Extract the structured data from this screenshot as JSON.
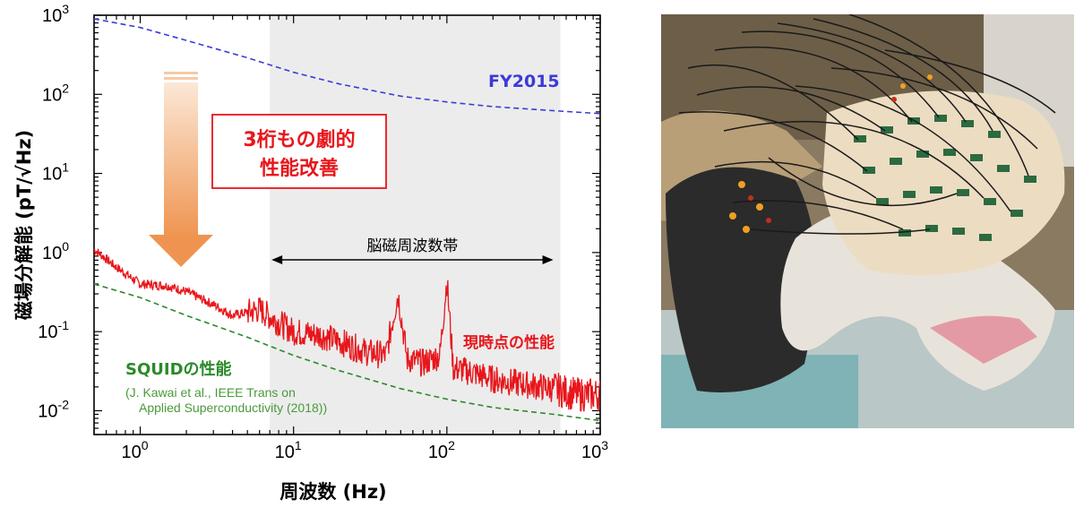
{
  "chart_data": {
    "type": "line",
    "xscale": "log",
    "yscale": "log",
    "xlim": [
      0.5,
      1000
    ],
    "ylim": [
      0.005,
      1000
    ],
    "xlabel": "周波数 (Hz)",
    "ylabel": "磁場分解能 (pT/√Hz)",
    "x_ticks": [
      {
        "base": "10",
        "exp": "0",
        "value": 1
      },
      {
        "base": "10",
        "exp": "1",
        "value": 10
      },
      {
        "base": "10",
        "exp": "2",
        "value": 100
      },
      {
        "base": "10",
        "exp": "3",
        "value": 1000
      }
    ],
    "y_ticks": [
      {
        "base": "10",
        "exp": "-2",
        "value": 0.01
      },
      {
        "base": "10",
        "exp": "-1",
        "value": 0.1
      },
      {
        "base": "10",
        "exp": "0",
        "value": 1
      },
      {
        "base": "10",
        "exp": "1",
        "value": 10
      },
      {
        "base": "10",
        "exp": "2",
        "value": 100
      },
      {
        "base": "10",
        "exp": "3",
        "value": 1000
      }
    ],
    "band": {
      "x_start": 7,
      "x_end": 550,
      "label": "脳磁周波数帯"
    },
    "series": [
      {
        "name": "FY2015",
        "style": "dashed",
        "color": "#3a3ad8",
        "x": [
          0.5,
          1,
          2,
          5,
          10,
          20,
          50,
          100,
          200,
          500,
          1000
        ],
        "y": [
          900,
          700,
          480,
          290,
          190,
          135,
          95,
          80,
          70,
          62,
          57
        ]
      },
      {
        "name": "SQUIDの性能",
        "style": "dashed",
        "color": "#2a8a2a",
        "x": [
          0.5,
          1,
          2,
          5,
          10,
          20,
          50,
          100,
          200,
          500,
          1000
        ],
        "y": [
          0.4,
          0.27,
          0.16,
          0.085,
          0.05,
          0.032,
          0.019,
          0.014,
          0.011,
          0.009,
          0.0075
        ]
      },
      {
        "name": "現時点の性能",
        "style": "noisy",
        "color": "#e8161b",
        "x": [
          0.5,
          0.7,
          1,
          1.5,
          2,
          3,
          4,
          6,
          8,
          10,
          15,
          20,
          30,
          40,
          48,
          55,
          70,
          90,
          100,
          110,
          150,
          200,
          300,
          500,
          700,
          1000
        ],
        "y": [
          1.1,
          0.65,
          0.4,
          0.38,
          0.32,
          0.22,
          0.16,
          0.19,
          0.13,
          0.1,
          0.09,
          0.075,
          0.055,
          0.05,
          0.3,
          0.045,
          0.04,
          0.05,
          0.45,
          0.035,
          0.03,
          0.025,
          0.022,
          0.019,
          0.016,
          0.016
        ]
      }
    ],
    "annotations": {
      "fy2015": "FY2015",
      "current": "現時点の性能",
      "squid": "SQUIDの性能",
      "squid_citation_1": "(J. Kawai et al., IEEE Trans on",
      "squid_citation_2": "Applied Superconductivity (2018))",
      "improvement_line1": "3桁もの劇的",
      "improvement_line2": "性能改善"
    },
    "grid": false,
    "legend": "none"
  },
  "colors": {
    "red": "#e8161b",
    "blue": "#3a3ad8",
    "green": "#2a8a2a",
    "band": "#ececec",
    "arrow_top": "#fbe3cc",
    "arrow_bottom": "#ef9a5a"
  },
  "photo": {
    "icon": "meg-sensor-helmet-photo"
  }
}
